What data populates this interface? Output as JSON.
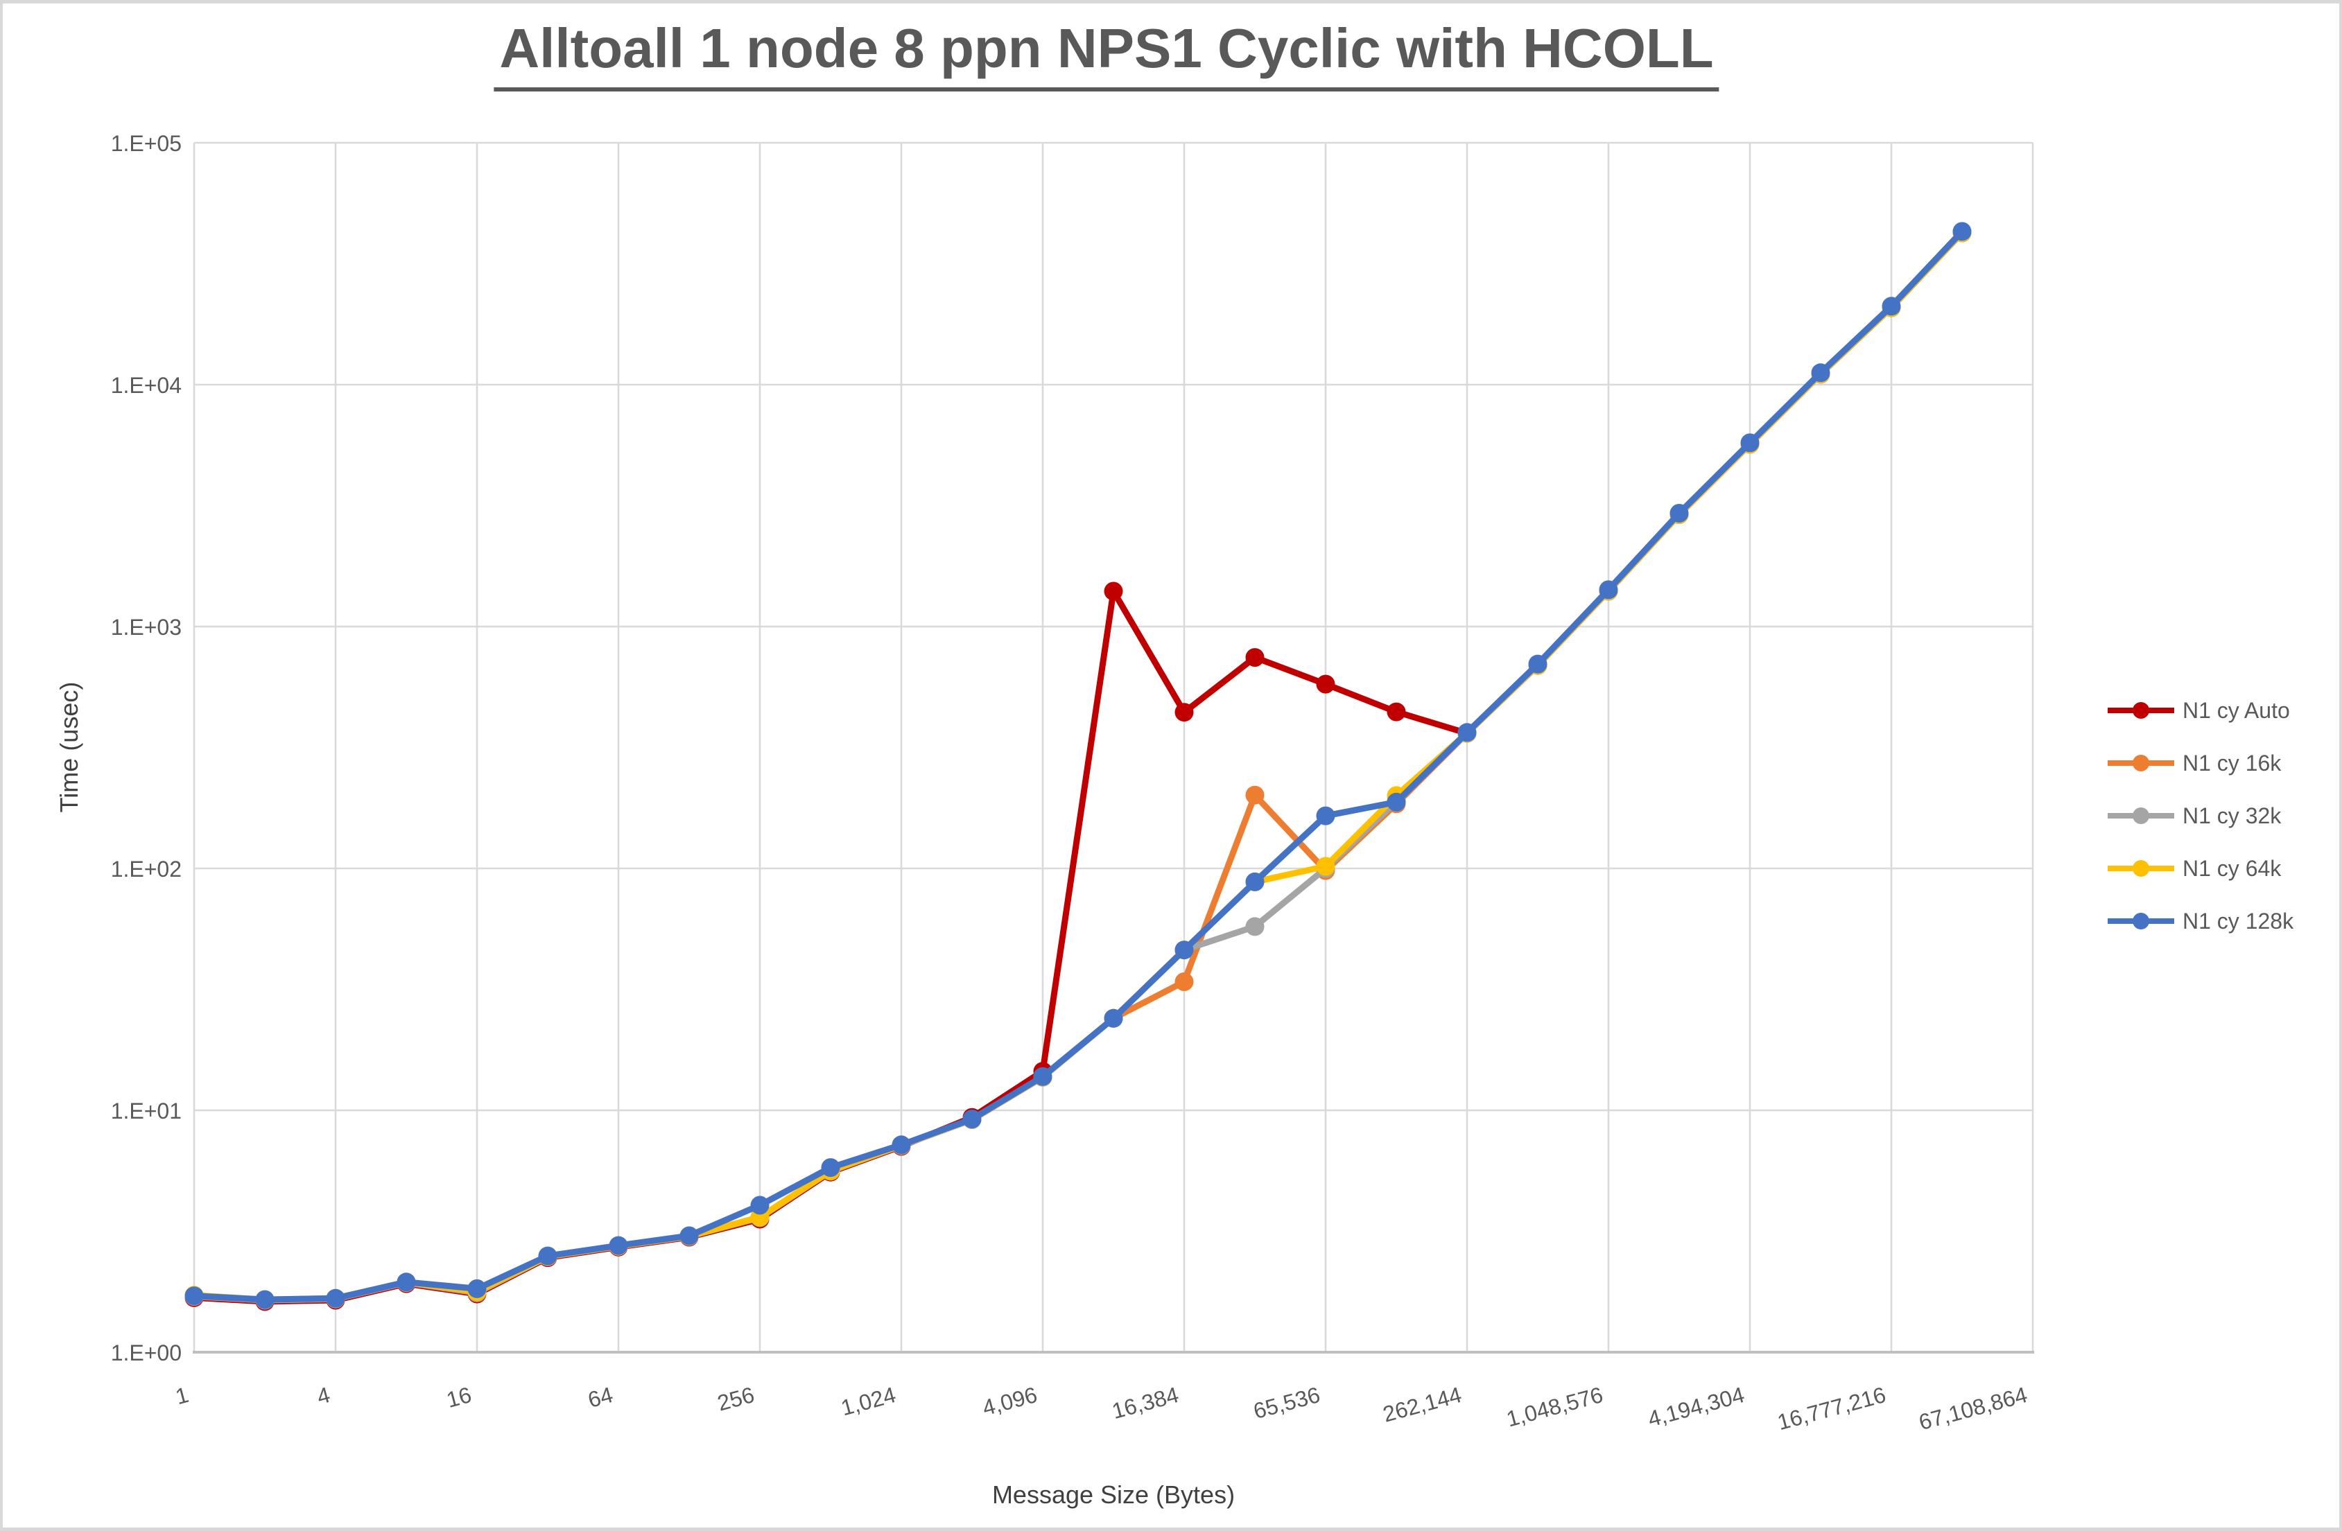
{
  "window": {
    "frame_color": "#D8D8D8",
    "background_color": "#FFFFFF"
  },
  "style_colors": {
    "gridline": "#D9D9D9",
    "axis_line": "#BFBFBF",
    "tick_label": "#595959",
    "title_text": "#595959",
    "axis_title_text": "#404040"
  },
  "chart_data": {
    "type": "line",
    "title": "Alltoall 1 node 8 ppn NPS1 Cyclic with HCOLL",
    "xlabel": "Message Size (Bytes)",
    "ylabel": "Time (usec)",
    "x_scale": "log2-categories",
    "y_scale": "log10",
    "ylim": [
      1,
      100000
    ],
    "grid": true,
    "legend_position": "right",
    "categories": [
      1,
      2,
      4,
      8,
      16,
      32,
      64,
      128,
      256,
      512,
      1024,
      2048,
      4096,
      8192,
      16384,
      32768,
      65536,
      131072,
      262144,
      524288,
      1048576,
      2097152,
      4194304,
      8388608,
      16777216,
      33554432,
      67108864
    ],
    "x_tick_labels": [
      "1",
      "4",
      "16",
      "64",
      "256",
      "1,024",
      "4,096",
      "16,384",
      "65,536",
      "262,144",
      "1,048,576",
      "4,194,304",
      "16,777,216",
      "67,108,864"
    ],
    "y_tick_labels": [
      "1.E+00",
      "1.E+01",
      "1.E+02",
      "1.E+03",
      "1.E+04",
      "1.E+05"
    ],
    "series": [
      {
        "name": "N1 cy Auto",
        "color": "#C00000",
        "values": [
          1.68,
          1.62,
          1.64,
          1.92,
          1.74,
          2.46,
          2.72,
          2.99,
          3.55,
          5.55,
          7.1,
          9.35,
          14.5,
          1400,
          442,
          745,
          578,
          444,
          362,
          null,
          null,
          null,
          null,
          null,
          null,
          null,
          null
        ]
      },
      {
        "name": "N1 cy 16k",
        "color": "#ED7D31",
        "values": [
          1.7,
          1.64,
          1.66,
          1.94,
          1.76,
          2.48,
          2.74,
          3.01,
          3.6,
          5.6,
          7.15,
          9.15,
          13.7,
          24,
          34,
          201,
          98,
          185,
          362,
          690,
          1400,
          2900,
          5670,
          11050,
          20800,
          42400,
          null
        ]
      },
      {
        "name": "N1 cy 32k",
        "color": "#A5A5A5",
        "values": [
          1.7,
          1.64,
          1.66,
          1.94,
          1.76,
          2.48,
          2.74,
          3.01,
          3.6,
          5.6,
          7.15,
          9.15,
          13.7,
          24,
          46,
          57.5,
          100,
          190,
          362,
          690,
          1400,
          2900,
          5670,
          11050,
          20800,
          42400,
          null
        ]
      },
      {
        "name": "N1 cy 64k",
        "color": "#FFC000",
        "values": [
          1.72,
          1.65,
          1.67,
          1.95,
          1.78,
          2.49,
          2.75,
          3.02,
          3.62,
          5.62,
          7.18,
          9.18,
          13.75,
          24,
          46,
          88,
          102,
          200,
          363,
          692,
          1405,
          2905,
          5680,
          11080,
          20850,
          42500,
          null
        ]
      },
      {
        "name": "N1 cy 128k",
        "color": "#4472C4",
        "values": [
          1.71,
          1.65,
          1.67,
          1.95,
          1.83,
          2.5,
          2.76,
          3.03,
          4.05,
          5.8,
          7.2,
          9.2,
          13.8,
          24,
          46,
          88,
          165,
          188,
          365,
          700,
          1420,
          2940,
          5750,
          11200,
          21100,
          43000,
          null
        ]
      }
    ]
  }
}
